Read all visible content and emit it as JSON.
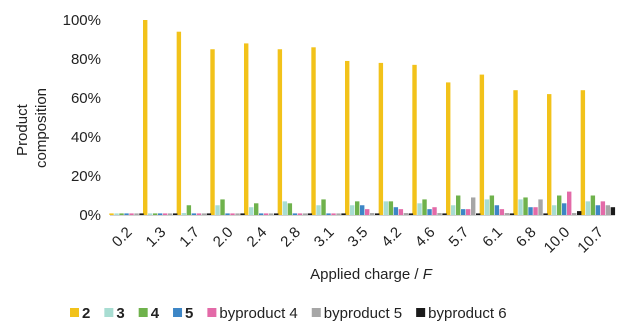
{
  "chart_data": {
    "type": "bar",
    "ylabel_lines": [
      "Product",
      "composition"
    ],
    "xlabel_prefix": "Applied charge / ",
    "xlabel_italic": "F",
    "y_ticks": [
      "0%",
      "20%",
      "40%",
      "60%",
      "80%",
      "100%"
    ],
    "ylim": [
      0,
      100
    ],
    "grid": false,
    "legend_position": "bottom",
    "categories": [
      "0.2",
      "1.3",
      "1.7",
      "2.0",
      "2.4",
      "2.8",
      "3.1",
      "3.5",
      "4.2",
      "4.6",
      "5.7",
      "6.1",
      "6.8",
      "10.0",
      "10.7"
    ],
    "series": [
      {
        "name": "2",
        "bold": true,
        "color": "#f2c21a",
        "values": [
          0,
          100,
          94,
          85,
          88,
          85,
          86,
          79,
          78,
          77,
          68,
          72,
          64,
          62,
          64
        ]
      },
      {
        "name": "3",
        "bold": true,
        "color": "#a8ddd2",
        "values": [
          0,
          0,
          1,
          5,
          4,
          7,
          5,
          5,
          7,
          6,
          5,
          8,
          8,
          5,
          7
        ]
      },
      {
        "name": "4",
        "bold": true,
        "color": "#6fb24c",
        "values": [
          0,
          0,
          5,
          8,
          6,
          6,
          8,
          7,
          7,
          8,
          10,
          10,
          9,
          10,
          10
        ]
      },
      {
        "name": "5",
        "bold": true,
        "color": "#3d86c6",
        "values": [
          0,
          0,
          0,
          0,
          0,
          0,
          0,
          5,
          4,
          3,
          3,
          5,
          4,
          6,
          5
        ]
      },
      {
        "name": "byproduct 4",
        "bold": false,
        "color": "#e36aa8",
        "values": [
          0,
          0,
          0,
          0,
          0,
          0,
          0,
          3,
          3,
          4,
          3,
          3,
          4,
          12,
          7
        ]
      },
      {
        "name": "byproduct 5",
        "bold": false,
        "color": "#a6a6a6",
        "values": [
          0,
          0,
          0,
          0,
          0,
          0,
          0,
          1,
          1,
          1,
          9,
          1,
          8,
          1,
          5
        ]
      },
      {
        "name": "byproduct 6",
        "bold": false,
        "color": "#1a1a1a",
        "values": [
          0,
          0,
          0,
          0,
          0,
          0,
          0,
          0,
          0,
          0,
          0,
          0,
          0,
          2,
          4
        ]
      }
    ]
  }
}
